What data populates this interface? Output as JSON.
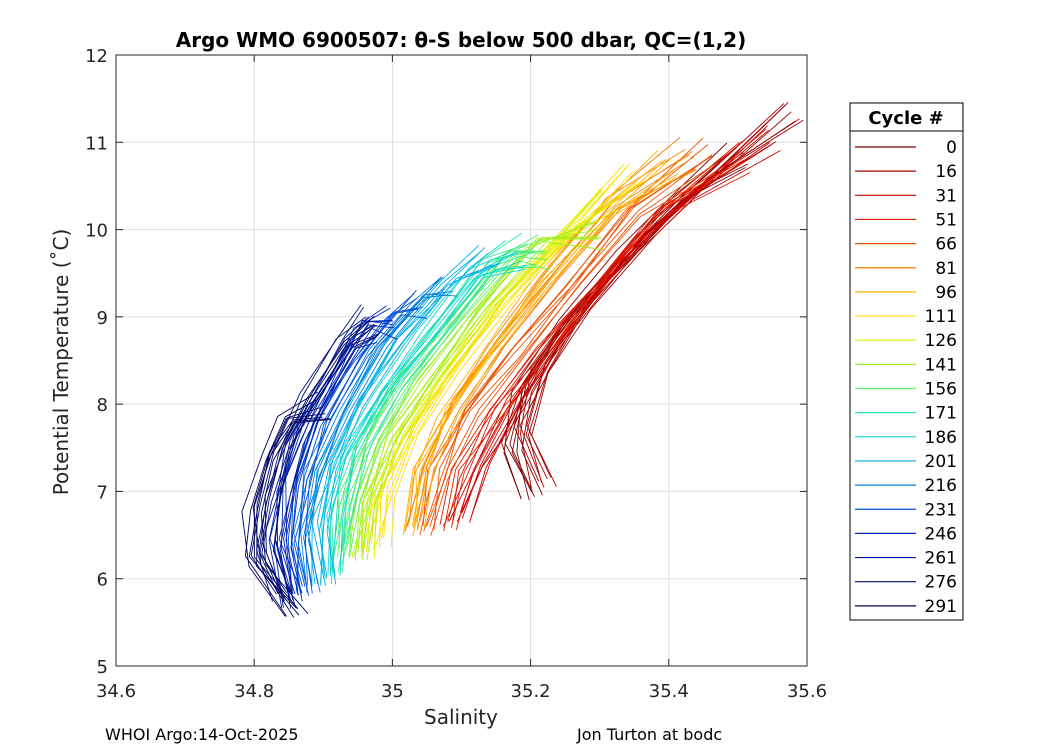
{
  "chart_data": {
    "type": "line",
    "title": "Argo WMO 6900507: θ-S below 500 dbar,  QC=(1,2)",
    "xlabel": "Salinity",
    "ylabel": "Potential Temperature (˚C)",
    "xlim": [
      34.6,
      35.6
    ],
    "ylim": [
      5,
      12
    ],
    "xticks": [
      "34.6",
      "34.8",
      "35",
      "35.2",
      "35.4",
      "35.6"
    ],
    "yticks": [
      "5",
      "6",
      "7",
      "8",
      "9",
      "10",
      "11",
      "12"
    ],
    "grid": true,
    "legend": {
      "title": "Cycle #",
      "placement": "right-outside",
      "entries": [
        {
          "label": "0",
          "color": "#800000"
        },
        {
          "label": "16",
          "color": "#a00000"
        },
        {
          "label": "31",
          "color": "#c80000"
        },
        {
          "label": "51",
          "color": "#e01a00"
        },
        {
          "label": "66",
          "color": "#f05000"
        },
        {
          "label": "81",
          "color": "#f88000"
        },
        {
          "label": "96",
          "color": "#ffb000"
        },
        {
          "label": "111",
          "color": "#ffe000"
        },
        {
          "label": "126",
          "color": "#d8f000"
        },
        {
          "label": "141",
          "color": "#a0f020"
        },
        {
          "label": "156",
          "color": "#60f060"
        },
        {
          "label": "171",
          "color": "#30e8a0"
        },
        {
          "label": "186",
          "color": "#10d8d0"
        },
        {
          "label": "201",
          "color": "#00b0e8"
        },
        {
          "label": "216",
          "color": "#0080e0"
        },
        {
          "label": "231",
          "color": "#0050d8"
        },
        {
          "label": "246",
          "color": "#0028c0"
        },
        {
          "label": "261",
          "color": "#001898"
        },
        {
          "label": "276",
          "color": "#000c70"
        },
        {
          "label": "291",
          "color": "#000060"
        }
      ]
    },
    "series": [
      {
        "name": "0",
        "s": [
          35.2,
          35.17,
          35.19,
          35.25,
          35.34,
          35.42,
          35.5
        ],
        "t": [
          6.95,
          7.5,
          8.2,
          8.95,
          9.7,
          10.4,
          11.0
        ]
      },
      {
        "name": "16",
        "s": [
          35.22,
          35.19,
          35.22,
          35.28,
          35.37,
          35.46,
          35.58
        ],
        "t": [
          7.1,
          7.7,
          8.4,
          9.1,
          9.9,
          10.6,
          11.5
        ]
      },
      {
        "name": "31",
        "s": [
          35.1,
          35.13,
          35.18,
          35.25,
          35.33,
          35.42,
          35.55
        ],
        "t": [
          6.7,
          7.3,
          8.0,
          8.8,
          9.6,
          10.3,
          11.2
        ]
      },
      {
        "name": "51",
        "s": [
          35.08,
          35.1,
          35.15,
          35.22,
          35.3,
          35.39,
          35.51
        ],
        "t": [
          6.6,
          7.2,
          7.9,
          8.6,
          9.4,
          10.2,
          11.0
        ]
      },
      {
        "name": "66",
        "s": [
          35.05,
          35.07,
          35.11,
          35.18,
          35.26,
          35.35,
          35.46
        ],
        "t": [
          6.55,
          7.2,
          7.9,
          8.6,
          9.4,
          10.2,
          11.0
        ]
      },
      {
        "name": "81",
        "s": [
          35.03,
          35.05,
          35.09,
          35.15,
          35.23,
          35.32,
          35.43
        ],
        "t": [
          6.6,
          7.3,
          8.0,
          8.7,
          9.5,
          10.3,
          11.0
        ]
      },
      {
        "name": "96",
        "s": [
          35.03,
          35.04,
          35.08,
          35.14,
          35.22,
          35.31,
          35.4
        ],
        "t": [
          6.55,
          7.2,
          7.9,
          8.6,
          9.4,
          10.2,
          10.9
        ]
      },
      {
        "name": "111",
        "s": [
          34.98,
          34.99,
          35.03,
          35.09,
          35.17,
          35.26,
          35.35
        ],
        "t": [
          6.4,
          7.0,
          7.7,
          8.4,
          9.2,
          10.0,
          10.8
        ]
      },
      {
        "name": "126",
        "s": [
          34.96,
          34.97,
          35.01,
          35.07,
          35.15,
          35.23,
          35.31
        ],
        "t": [
          6.3,
          6.9,
          7.6,
          8.3,
          9.1,
          9.8,
          10.5
        ]
      },
      {
        "name": "141",
        "s": [
          34.95,
          34.96,
          34.99,
          35.05,
          35.12,
          35.21,
          35.3
        ],
        "t": [
          6.25,
          6.85,
          7.55,
          8.25,
          9.05,
          9.85,
          10.1
        ]
      },
      {
        "name": "156",
        "s": [
          34.93,
          34.94,
          34.97,
          35.02,
          35.09,
          35.17,
          35.22
        ],
        "t": [
          6.3,
          6.9,
          7.6,
          8.3,
          9.0,
          9.7,
          9.9
        ]
      },
      {
        "name": "171",
        "s": [
          34.92,
          34.93,
          34.95,
          35.0,
          35.07,
          35.14,
          35.2
        ],
        "t": [
          6.1,
          6.8,
          7.5,
          8.2,
          8.9,
          9.6,
          9.9
        ]
      },
      {
        "name": "186",
        "s": [
          34.91,
          34.91,
          34.93,
          34.98,
          35.05,
          35.12,
          35.18
        ],
        "t": [
          6.0,
          6.7,
          7.4,
          8.1,
          8.8,
          9.5,
          9.85
        ]
      },
      {
        "name": "201",
        "s": [
          34.9,
          34.89,
          34.91,
          34.95,
          35.01,
          35.08,
          35.14
        ],
        "t": [
          5.95,
          6.6,
          7.3,
          8.0,
          8.7,
          9.4,
          9.85
        ]
      },
      {
        "name": "216",
        "s": [
          34.88,
          34.87,
          34.89,
          34.93,
          34.98,
          35.04,
          35.08
        ],
        "t": [
          5.9,
          6.5,
          7.2,
          7.9,
          8.6,
          9.2,
          9.5
        ]
      },
      {
        "name": "231",
        "s": [
          34.87,
          34.86,
          34.87,
          34.9,
          34.95,
          35.0,
          35.04
        ],
        "t": [
          5.85,
          6.4,
          7.1,
          7.8,
          8.5,
          9.0,
          9.3
        ]
      },
      {
        "name": "246",
        "s": [
          34.86,
          34.84,
          34.85,
          34.88,
          34.92,
          34.96,
          35.0
        ],
        "t": [
          5.8,
          6.4,
          7.1,
          7.8,
          8.4,
          8.9,
          9.1
        ]
      },
      {
        "name": "261",
        "s": [
          34.85,
          34.83,
          34.84,
          34.86,
          34.9,
          34.94,
          34.97
        ],
        "t": [
          5.7,
          6.4,
          7.0,
          7.6,
          8.2,
          8.7,
          9.05
        ]
      },
      {
        "name": "276",
        "s": [
          34.84,
          34.81,
          34.82,
          34.84,
          34.88,
          34.93,
          34.97
        ],
        "t": [
          5.8,
          6.3,
          6.9,
          7.5,
          8.1,
          8.7,
          9.1
        ]
      },
      {
        "name": "291",
        "s": [
          34.86,
          34.8,
          34.8,
          34.82,
          34.85,
          34.9
        ],
        "t": [
          5.6,
          6.2,
          6.8,
          7.4,
          7.8,
          8.1
        ]
      }
    ]
  },
  "footer": {
    "left": "WHOI Argo:14-Oct-2025",
    "right": "Jon Turton at bodc"
  }
}
